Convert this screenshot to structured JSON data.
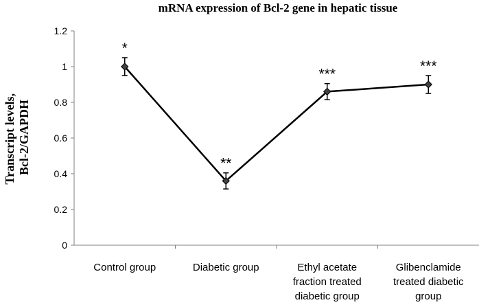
{
  "chart_data": {
    "type": "line",
    "title": "mRNA expression of Bcl-2 gene in hepatic tissue",
    "ylabel_lines": [
      "Transcript levels,",
      "Bcl-2/GAPDH"
    ],
    "xlabel": "",
    "ylim": [
      0,
      1.2
    ],
    "yticks": [
      0,
      0.2,
      0.4,
      0.6,
      0.8,
      1,
      1.2
    ],
    "ytick_labels": [
      "0",
      "0.2",
      "0.4",
      "0.6",
      "0.8",
      "1",
      "1.2"
    ],
    "grid": false,
    "legend": "none",
    "line_color": "#000000",
    "marker_color": "#404040",
    "categories": [
      [
        "Control group"
      ],
      [
        "Diabetic group"
      ],
      [
        "Ethyl acetate",
        "fraction treated",
        "diabetic group"
      ],
      [
        "Glibenclamide",
        "treated diabetic",
        "group"
      ]
    ],
    "values": [
      1.0,
      0.36,
      0.86,
      0.9
    ],
    "errors": [
      0.05,
      0.045,
      0.045,
      0.05
    ],
    "significance": [
      "*",
      "**",
      "***",
      "***"
    ]
  }
}
